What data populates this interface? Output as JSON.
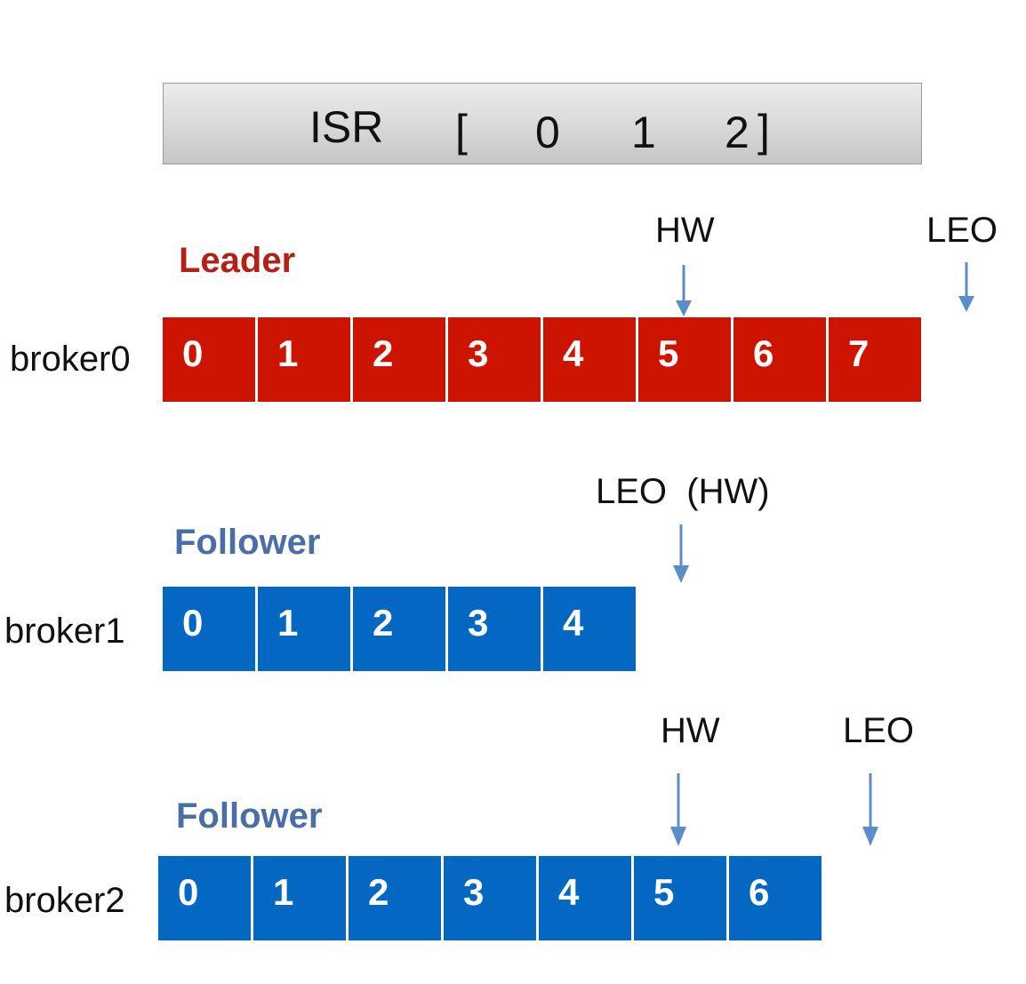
{
  "isr": {
    "label": "ISR",
    "open_bracket": "[",
    "replicas": [
      "0",
      "1",
      "2"
    ],
    "close_bracket": "]"
  },
  "brokers": [
    {
      "name": "broker0",
      "role": "Leader",
      "color": "#cc1400",
      "offsets": [
        "0",
        "1",
        "2",
        "3",
        "4",
        "5",
        "6",
        "7"
      ],
      "markers": [
        {
          "label": "HW"
        },
        {
          "label": "LEO"
        }
      ]
    },
    {
      "name": "broker1",
      "role": "Follower",
      "color": "#0468c2",
      "offsets": [
        "0",
        "1",
        "2",
        "3",
        "4"
      ],
      "markers": [
        {
          "label": "LEO  (HW)"
        }
      ]
    },
    {
      "name": "broker2",
      "role": "Follower",
      "color": "#0468c2",
      "offsets": [
        "0",
        "1",
        "2",
        "3",
        "4",
        "5",
        "6"
      ],
      "markers": [
        {
          "label": "HW"
        },
        {
          "label": "LEO"
        }
      ]
    }
  ],
  "colors": {
    "leader_text": "#b22016",
    "follower_text": "#4a6ea6",
    "arrow": "#5b8ec8"
  }
}
